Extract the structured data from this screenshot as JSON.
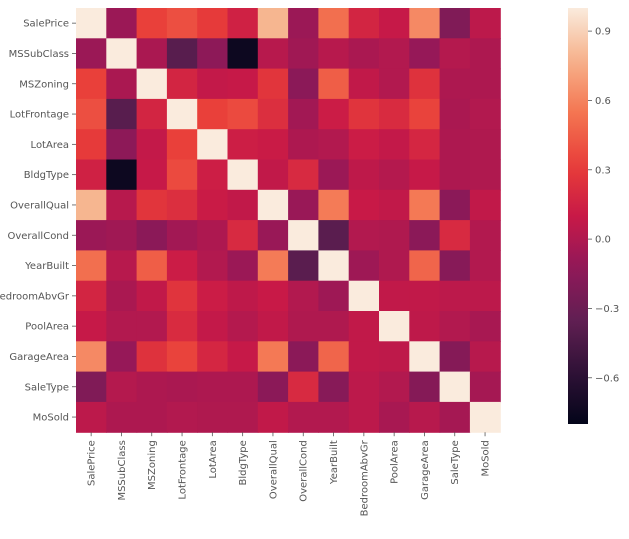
{
  "chart_data": {
    "type": "heatmap",
    "title": "",
    "variables": [
      "SalePrice",
      "MSSubClass",
      "MSZoning",
      "LotFrontage",
      "LotArea",
      "BldgType",
      "OverallQual",
      "OverallCond",
      "YearBuilt",
      "BedroomAbvGr",
      "PoolArea",
      "GarageArea",
      "SaleType",
      "MoSold"
    ],
    "matrix": [
      [
        1.0,
        -0.08,
        0.33,
        0.39,
        0.3,
        0.15,
        0.79,
        -0.08,
        0.52,
        0.17,
        0.09,
        0.62,
        -0.2,
        0.05
      ],
      [
        -0.08,
        1.0,
        -0.02,
        -0.39,
        -0.14,
        -0.75,
        0.03,
        -0.06,
        0.03,
        -0.02,
        0.01,
        -0.1,
        0.02,
        -0.01
      ],
      [
        0.33,
        -0.02,
        1.0,
        0.17,
        0.08,
        0.09,
        0.27,
        -0.15,
        0.45,
        0.07,
        0.01,
        0.25,
        -0.01,
        -0.01
      ],
      [
        0.39,
        -0.39,
        0.17,
        1.0,
        0.33,
        0.37,
        0.23,
        -0.05,
        0.12,
        0.26,
        0.21,
        0.34,
        -0.02,
        0.01
      ],
      [
        0.3,
        -0.14,
        0.08,
        0.33,
        1.0,
        0.13,
        0.11,
        -0.01,
        0.01,
        0.12,
        0.08,
        0.18,
        -0.01,
        0.0
      ],
      [
        0.15,
        -0.75,
        0.09,
        0.37,
        0.13,
        1.0,
        0.07,
        0.2,
        -0.08,
        0.06,
        0.02,
        0.09,
        -0.01,
        0.0
      ],
      [
        0.79,
        0.03,
        0.27,
        0.23,
        0.11,
        0.07,
        1.0,
        -0.09,
        0.57,
        0.1,
        0.07,
        0.56,
        -0.15,
        0.07
      ],
      [
        -0.08,
        -0.06,
        -0.15,
        -0.05,
        -0.01,
        0.2,
        -0.09,
        1.0,
        -0.38,
        0.01,
        -0.0,
        -0.15,
        0.2,
        0.01
      ],
      [
        0.52,
        0.03,
        0.45,
        0.12,
        0.01,
        -0.08,
        0.57,
        -0.38,
        1.0,
        -0.07,
        0.0,
        0.48,
        -0.17,
        0.01
      ],
      [
        0.17,
        -0.02,
        0.07,
        0.26,
        0.12,
        0.06,
        0.1,
        0.01,
        -0.07,
        1.0,
        0.07,
        0.07,
        0.05,
        0.05
      ],
      [
        0.09,
        0.01,
        0.01,
        0.21,
        0.08,
        0.02,
        0.07,
        -0.0,
        0.0,
        0.07,
        1.0,
        0.06,
        0.01,
        -0.03
      ],
      [
        0.62,
        -0.1,
        0.25,
        0.34,
        0.18,
        0.09,
        0.56,
        -0.15,
        0.48,
        0.07,
        0.06,
        1.0,
        -0.18,
        0.03
      ],
      [
        -0.2,
        0.02,
        -0.01,
        -0.02,
        -0.01,
        -0.01,
        -0.15,
        0.2,
        -0.17,
        0.05,
        0.01,
        -0.18,
        1.0,
        -0.04
      ],
      [
        0.05,
        -0.01,
        -0.01,
        0.01,
        0.0,
        0.0,
        0.07,
        0.01,
        0.01,
        0.05,
        -0.03,
        0.03,
        -0.04,
        1.0
      ]
    ],
    "vmin": -0.8,
    "vmax": 1.0,
    "colormap": "rocket",
    "colorbar": {
      "ticks": [
        -0.6,
        -0.3,
        0.0,
        0.3,
        0.6,
        0.9
      ],
      "tick_labels": [
        "−0.6",
        "−0.3",
        "0.0",
        "0.3",
        "0.6",
        "0.9"
      ]
    },
    "xlabel": "",
    "ylabel": "",
    "grid": false
  }
}
